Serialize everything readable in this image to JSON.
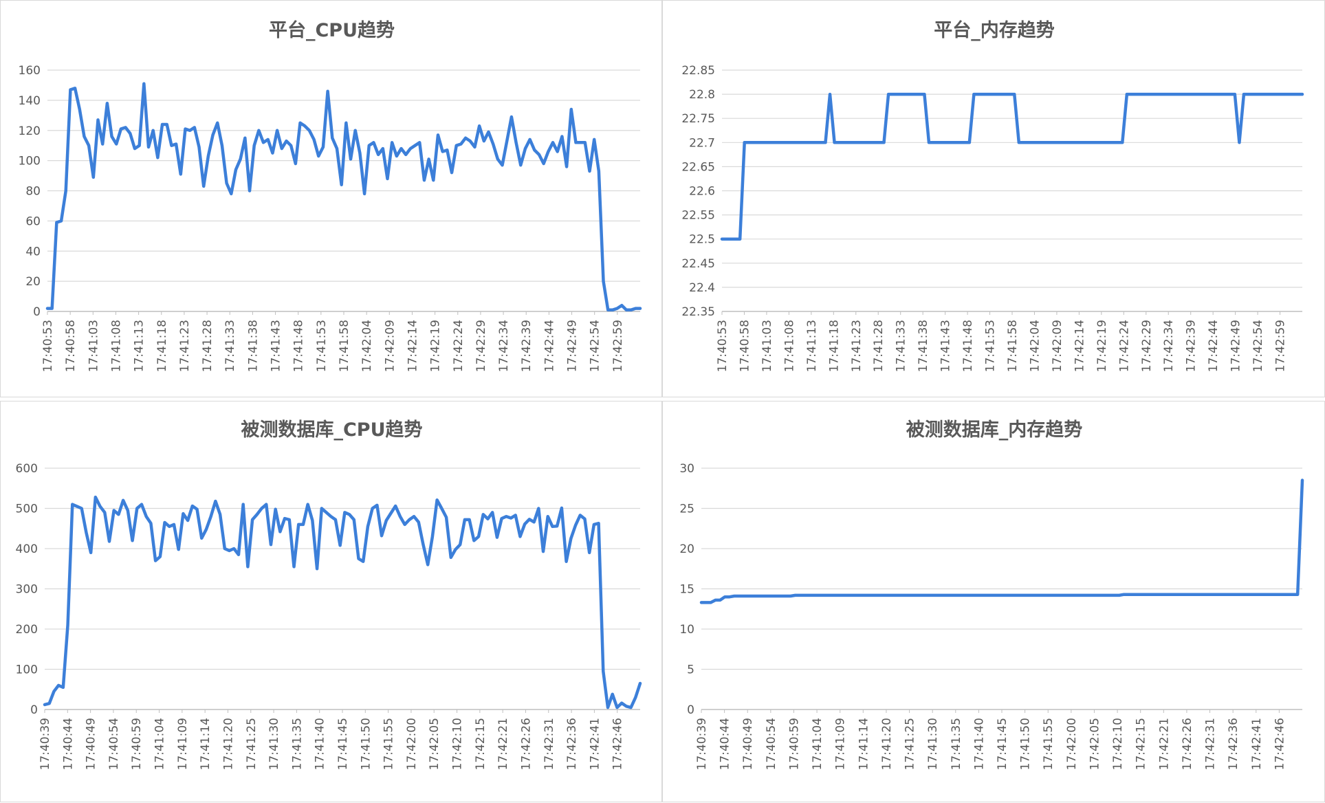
{
  "colors": {
    "series": "#3c7fd9",
    "grid": "#d9d9d9",
    "text": "#595959",
    "border": "#d9d9d9"
  },
  "chart_data": [
    {
      "type": "line",
      "title": "平台_CPU趋势",
      "xlabel": "",
      "ylabel": "",
      "ylim": [
        0,
        160
      ],
      "yticks": [
        0,
        20,
        40,
        60,
        80,
        100,
        120,
        140,
        160
      ],
      "xtick_labels": [
        "17:40:53",
        "17:40:58",
        "17:41:03",
        "17:41:08",
        "17:41:13",
        "17:41:18",
        "17:41:23",
        "17:41:28",
        "17:41:33",
        "17:41:38",
        "17:41:43",
        "17:41:48",
        "17:41:53",
        "17:41:58",
        "17:42:04",
        "17:42:09",
        "17:42:14",
        "17:42:19",
        "17:42:24",
        "17:42:29",
        "17:42:34",
        "17:42:39",
        "17:42:44",
        "17:42:49",
        "17:42:54",
        "17:42:59"
      ],
      "legend": "none",
      "grid": true,
      "values": [
        2,
        2,
        59,
        60,
        80,
        147,
        148,
        134,
        116,
        110,
        89,
        127,
        111,
        138,
        116,
        111,
        121,
        122,
        118,
        108,
        110,
        151,
        109,
        120,
        102,
        124,
        124,
        110,
        111,
        91,
        121,
        120,
        122,
        109,
        83,
        103,
        117,
        125,
        110,
        85,
        78,
        94,
        101,
        115,
        80,
        110,
        120,
        112,
        114,
        105,
        120,
        108,
        113,
        110,
        98,
        125,
        123,
        120,
        114,
        103,
        109,
        146,
        115,
        108,
        84,
        125,
        101,
        120,
        105,
        78,
        110,
        112,
        104,
        108,
        88,
        112,
        103,
        108,
        104,
        108,
        110,
        112,
        87,
        101,
        87,
        117,
        106,
        107,
        92,
        110,
        111,
        115,
        113,
        109,
        123,
        113,
        119,
        111,
        101,
        97,
        113,
        129,
        112,
        97,
        108,
        114,
        107,
        104,
        98,
        106,
        112,
        106,
        116,
        96,
        134,
        112,
        112,
        112,
        93,
        114,
        93,
        20,
        1,
        1,
        2,
        4,
        1,
        1,
        2,
        2
      ]
    },
    {
      "type": "line",
      "title": "平台_内存趋势",
      "xlabel": "",
      "ylabel": "",
      "ylim": [
        22.35,
        22.85
      ],
      "yticks": [
        "22.35",
        "22.4",
        "22.45",
        "22.5",
        "22.55",
        "22.6",
        "22.65",
        "22.7",
        "22.75",
        "22.8",
        "22.85"
      ],
      "xtick_labels": [
        "17:40:53",
        "17:40:58",
        "17:41:03",
        "17:41:08",
        "17:41:13",
        "17:41:18",
        "17:41:23",
        "17:41:28",
        "17:41:33",
        "17:41:38",
        "17:41:43",
        "17:41:48",
        "17:41:53",
        "17:41:58",
        "17:42:04",
        "17:42:09",
        "17:42:14",
        "17:42:19",
        "17:42:24",
        "17:42:29",
        "17:42:34",
        "17:42:39",
        "17:42:44",
        "17:42:49",
        "17:42:54",
        "17:42:59"
      ],
      "legend": "none",
      "grid": true,
      "segments": [
        {
          "value": 22.5,
          "count": 5
        },
        {
          "value": 22.7,
          "count": 19
        },
        {
          "value": 22.8,
          "count": 1
        },
        {
          "value": 22.7,
          "count": 12
        },
        {
          "value": 22.8,
          "count": 9
        },
        {
          "value": 22.7,
          "count": 10
        },
        {
          "value": 22.8,
          "count": 10
        },
        {
          "value": 22.7,
          "count": 24
        },
        {
          "value": 22.8,
          "count": 25
        },
        {
          "value": 22.7,
          "count": 1
        },
        {
          "value": 22.8,
          "count": 14
        }
      ]
    },
    {
      "type": "line",
      "title": "被测数据库_CPU趋势",
      "xlabel": "",
      "ylabel": "",
      "ylim": [
        0,
        600
      ],
      "yticks": [
        0,
        100,
        200,
        300,
        400,
        500,
        600
      ],
      "xtick_labels": [
        "17:40:39",
        "17:40:44",
        "17:40:49",
        "17:40:54",
        "17:40:59",
        "17:41:04",
        "17:41:09",
        "17:41:14",
        "17:41:20",
        "17:41:25",
        "17:41:30",
        "17:41:35",
        "17:41:40",
        "17:41:45",
        "17:41:50",
        "17:41:55",
        "17:42:00",
        "17:42:05",
        "17:42:10",
        "17:42:15",
        "17:42:21",
        "17:42:26",
        "17:42:31",
        "17:42:36",
        "17:42:41",
        "17:42:46"
      ],
      "legend": "none",
      "grid": true,
      "values": [
        12,
        15,
        45,
        60,
        55,
        210,
        510,
        505,
        500,
        440,
        390,
        528,
        505,
        490,
        418,
        495,
        485,
        520,
        495,
        420,
        500,
        510,
        480,
        463,
        370,
        380,
        465,
        455,
        460,
        398,
        487,
        470,
        506,
        498,
        426,
        448,
        480,
        518,
        485,
        400,
        395,
        400,
        385,
        510,
        355,
        472,
        485,
        500,
        510,
        410,
        498,
        442,
        475,
        472,
        355,
        460,
        460,
        510,
        470,
        350,
        500,
        490,
        480,
        472,
        408,
        490,
        485,
        472,
        375,
        368,
        455,
        500,
        508,
        432,
        470,
        488,
        506,
        480,
        460,
        472,
        480,
        466,
        410,
        360,
        430,
        521,
        500,
        478,
        378,
        398,
        410,
        472,
        472,
        420,
        430,
        485,
        474,
        490,
        428,
        475,
        480,
        476,
        483,
        430,
        461,
        473,
        466,
        500,
        393,
        480,
        455,
        456,
        501,
        368,
        425,
        458,
        483,
        474,
        390,
        460,
        463,
        95,
        5,
        38,
        5,
        16,
        8,
        5,
        30,
        65
      ]
    },
    {
      "type": "line",
      "title": "被测数据库_内存趋势",
      "xlabel": "",
      "ylabel": "",
      "ylim": [
        0,
        30
      ],
      "yticks": [
        0,
        5,
        10,
        15,
        20,
        25,
        30
      ],
      "xtick_labels": [
        "17:40:39",
        "17:40:44",
        "17:40:49",
        "17:40:54",
        "17:40:59",
        "17:41:04",
        "17:41:09",
        "17:41:14",
        "17:41:20",
        "17:41:25",
        "17:41:30",
        "17:41:35",
        "17:41:40",
        "17:41:45",
        "17:41:50",
        "17:41:55",
        "17:42:00",
        "17:42:05",
        "17:42:10",
        "17:42:15",
        "17:42:21",
        "17:42:26",
        "17:42:31",
        "17:42:36",
        "17:42:41",
        "17:42:46"
      ],
      "legend": "none",
      "grid": true,
      "segments": [
        {
          "value": 13.3,
          "count": 3
        },
        {
          "value": 13.6,
          "count": 2
        },
        {
          "value": 14.0,
          "count": 2
        },
        {
          "value": 14.1,
          "count": 13
        },
        {
          "value": 14.2,
          "count": 70
        },
        {
          "value": 14.3,
          "count": 38
        },
        {
          "value": 28.5,
          "count": 1
        }
      ]
    }
  ]
}
